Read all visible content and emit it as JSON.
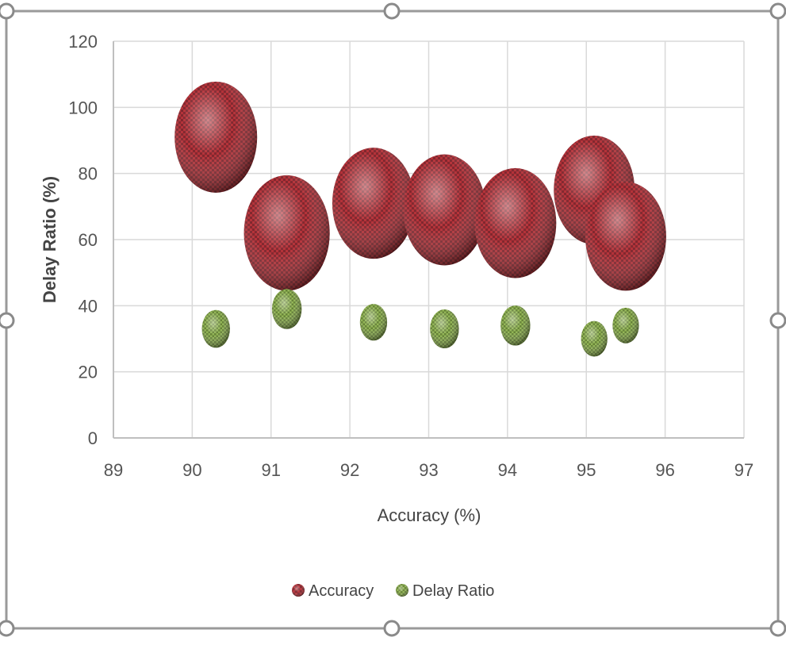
{
  "chart_data": {
    "type": "scatter",
    "subtype": "bubble-3d",
    "title": "",
    "xlabel": "Accuracy (%)",
    "ylabel": "Delay Ratio (%)",
    "xlim": [
      89,
      97
    ],
    "ylim": [
      0,
      120
    ],
    "xticks": [
      "89",
      "90",
      "91",
      "92",
      "93",
      "94",
      "95",
      "96",
      "97"
    ],
    "yticks": [
      "0",
      "20",
      "40",
      "60",
      "80",
      "100",
      "120"
    ],
    "grid": true,
    "legend_position": "bottom",
    "series": [
      {
        "name": "Accuracy",
        "color": "#a01d24",
        "points": [
          {
            "x": 90.3,
            "y": 91,
            "size": 1.0
          },
          {
            "x": 91.2,
            "y": 62,
            "size": 1.04
          },
          {
            "x": 92.3,
            "y": 71,
            "size": 1.0
          },
          {
            "x": 93.2,
            "y": 69,
            "size": 1.0
          },
          {
            "x": 94.1,
            "y": 65,
            "size": 0.99
          },
          {
            "x": 95.1,
            "y": 75,
            "size": 0.98
          },
          {
            "x": 95.5,
            "y": 61,
            "size": 0.98
          }
        ]
      },
      {
        "name": "Delay Ratio",
        "color": "#7ea33c",
        "points": [
          {
            "x": 90.3,
            "y": 33,
            "size": 0.34
          },
          {
            "x": 91.2,
            "y": 39,
            "size": 0.36
          },
          {
            "x": 92.3,
            "y": 35,
            "size": 0.33
          },
          {
            "x": 93.2,
            "y": 33,
            "size": 0.35
          },
          {
            "x": 94.1,
            "y": 34,
            "size": 0.36
          },
          {
            "x": 95.1,
            "y": 30,
            "size": 0.32
          },
          {
            "x": 95.5,
            "y": 34,
            "size": 0.32
          }
        ]
      }
    ]
  }
}
